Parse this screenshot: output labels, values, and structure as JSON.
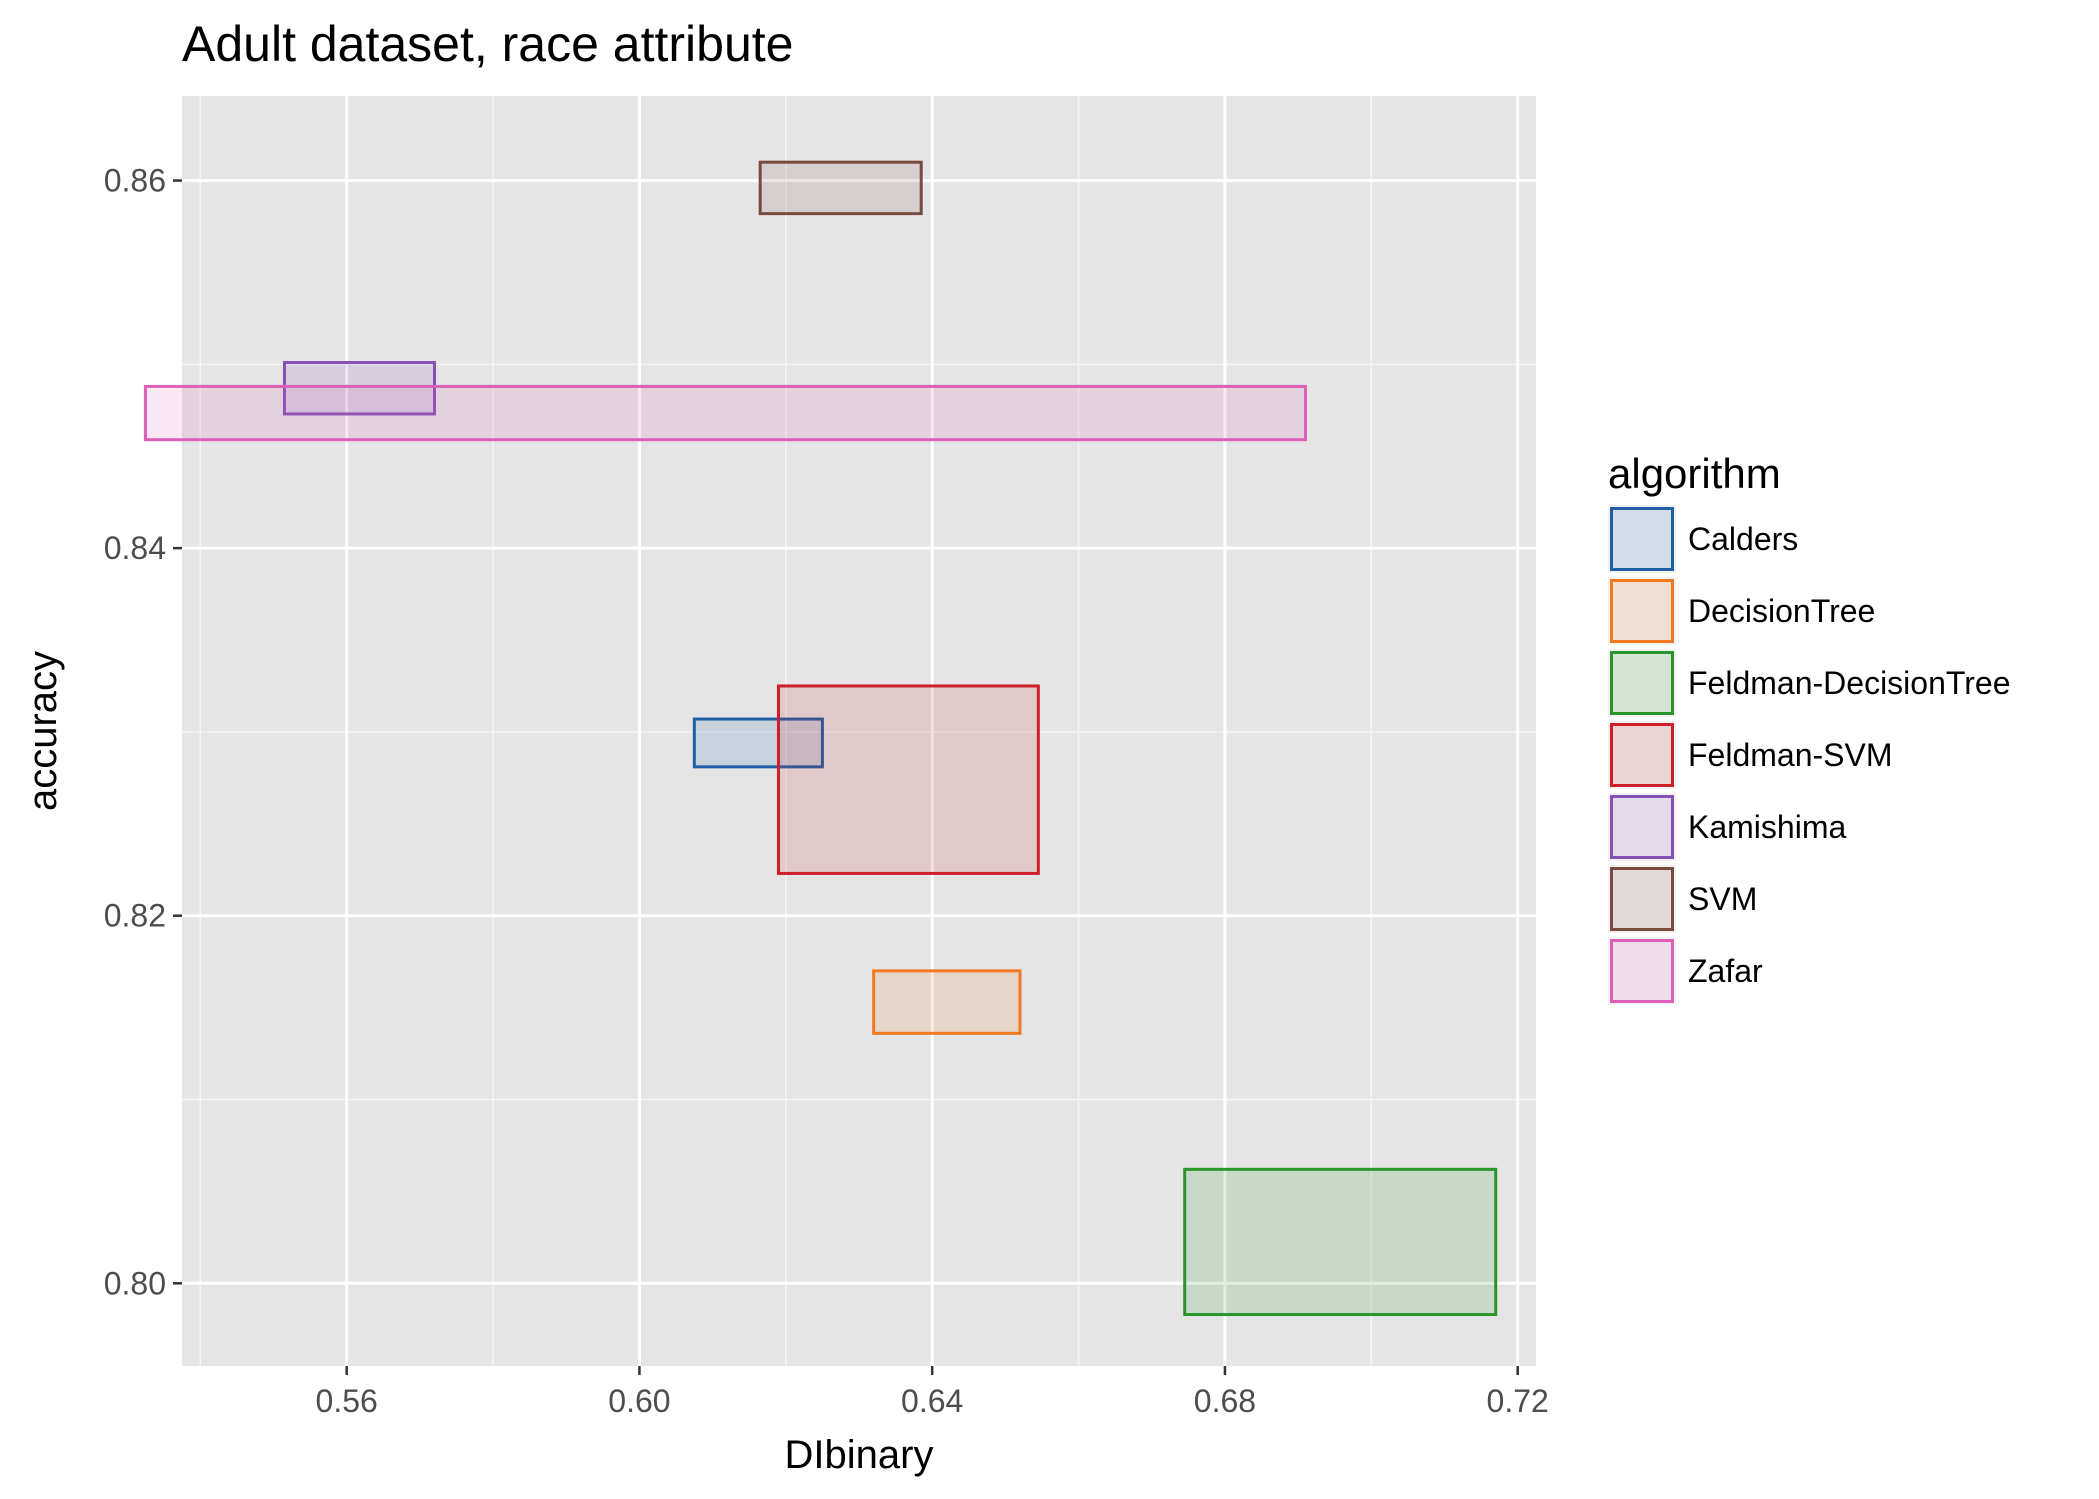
{
  "chart_data": {
    "type": "rect",
    "title": "Adult dataset, race attribute",
    "xlabel": "DIbinary",
    "ylabel": "accuracy",
    "xlim": [
      0.5375,
      0.7225
    ],
    "ylim": [
      0.7955,
      0.8646
    ],
    "x_ticks": [
      0.56,
      0.6,
      0.64,
      0.68,
      0.72
    ],
    "x_tick_labels": [
      "0.56",
      "0.60",
      "0.64",
      "0.68",
      "0.72"
    ],
    "y_ticks": [
      0.8,
      0.82,
      0.84,
      0.86
    ],
    "y_tick_labels": [
      "0.80",
      "0.82",
      "0.84",
      "0.86"
    ],
    "grid": true,
    "legend": {
      "title": "algorithm",
      "placement": "right"
    },
    "series": [
      {
        "name": "Calders",
        "color": "#1f5fa6",
        "xmin": 0.6075,
        "xmax": 0.625,
        "ymin": 0.8281,
        "ymax": 0.8307
      },
      {
        "name": "DecisionTree",
        "color": "#f07a22",
        "xmin": 0.632,
        "xmax": 0.652,
        "ymin": 0.8136,
        "ymax": 0.817
      },
      {
        "name": "Feldman-DecisionTree",
        "color": "#2a962a",
        "xmin": 0.6745,
        "xmax": 0.717,
        "ymin": 0.7983,
        "ymax": 0.8062
      },
      {
        "name": "Feldman-SVM",
        "color": "#cc1f26",
        "xmin": 0.619,
        "xmax": 0.6545,
        "ymin": 0.8223,
        "ymax": 0.8325
      },
      {
        "name": "Kamishima",
        "color": "#8650b5",
        "xmin": 0.5515,
        "xmax": 0.572,
        "ymin": 0.8473,
        "ymax": 0.8501
      },
      {
        "name": "SVM",
        "color": "#7a4a40",
        "xmin": 0.6165,
        "xmax": 0.6385,
        "ymin": 0.8582,
        "ymax": 0.861
      },
      {
        "name": "Zafar",
        "color": "#dc5fb8",
        "xmin": 0.5325,
        "xmax": 0.691,
        "ymin": 0.8459,
        "ymax": 0.8488
      }
    ]
  }
}
